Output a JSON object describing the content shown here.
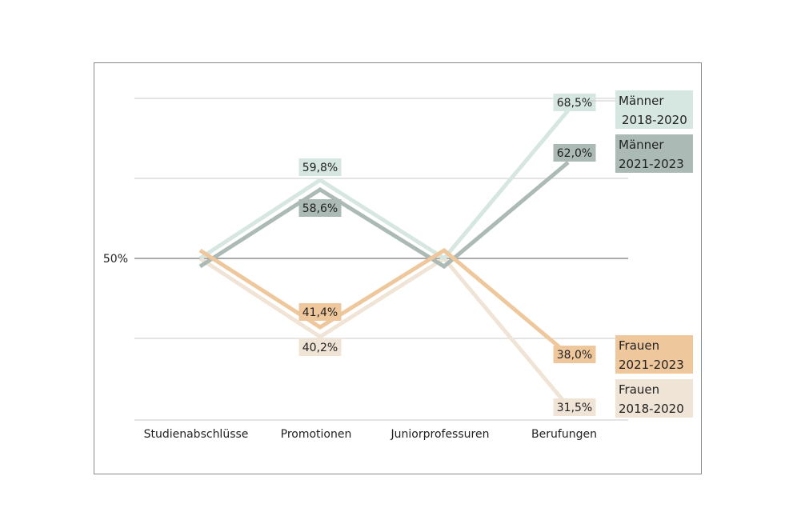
{
  "chart_data": {
    "type": "line",
    "categories": [
      "Studienabschlüsse",
      "Promotionen",
      "Juniorprofessuren",
      "Berufungen"
    ],
    "ylim": [
      30,
      70
    ],
    "y_tick_labels": [
      {
        "value": 50,
        "label": "50%"
      }
    ],
    "grid": true,
    "legend": "right",
    "series": [
      {
        "name": "Männer 2018-2020",
        "name_lines": [
          "Männer",
          "2018-2020"
        ],
        "values": [
          50,
          59.8,
          50,
          68.5
        ],
        "labels": [
          null,
          "59,8%",
          null,
          "68,5%"
        ],
        "color": "#d6e6e0"
      },
      {
        "name": "Männer 2021-2023",
        "name_lines": [
          "Männer",
          "2021-2023"
        ],
        "values": [
          49,
          58.6,
          49,
          62.0
        ],
        "labels": [
          null,
          "58,6%",
          null,
          "62,0%"
        ],
        "color": "#abbab4"
      },
      {
        "name": "Frauen 2021-2023",
        "name_lines": [
          "Frauen",
          "2021-2023"
        ],
        "values": [
          51,
          41.4,
          51,
          38.0
        ],
        "labels": [
          null,
          "41,4%",
          null,
          "38,0%"
        ],
        "color": "#efc79d"
      },
      {
        "name": "Frauen 2018-2020",
        "name_lines": [
          "Frauen",
          "2018-2020"
        ],
        "values": [
          50,
          40.2,
          50,
          31.5
        ],
        "labels": [
          null,
          "40,2%",
          null,
          "31,5%"
        ],
        "color": "#f0e4d6"
      }
    ]
  }
}
